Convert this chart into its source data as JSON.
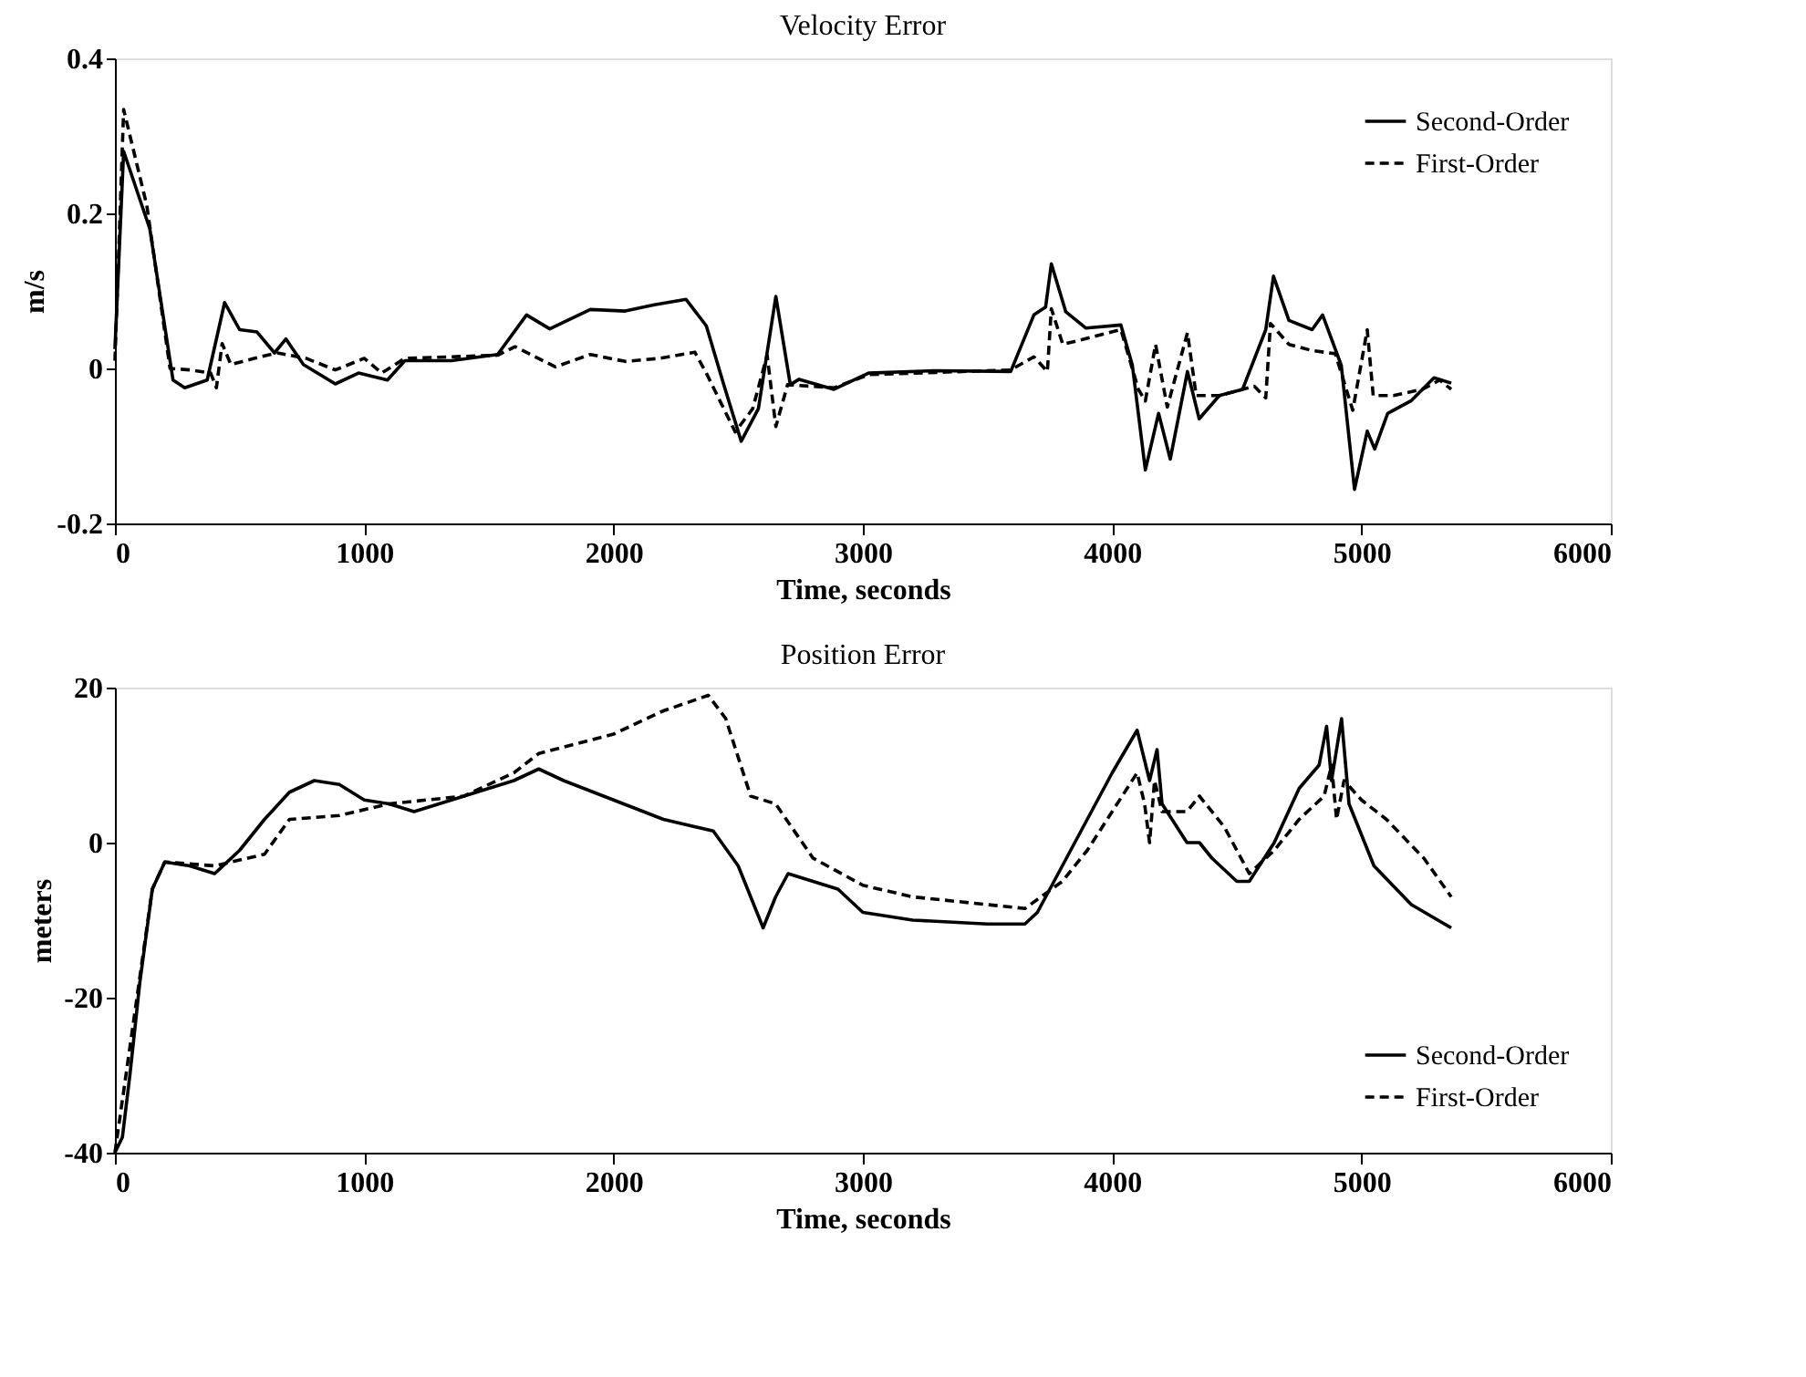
{
  "chart_data": [
    {
      "type": "line",
      "title": "Velocity Error",
      "xlabel": "Time, seconds",
      "ylabel": "m/s",
      "xlim": [
        0,
        6000
      ],
      "xticks": [
        0,
        1000,
        2000,
        3000,
        4000,
        5000,
        6000
      ],
      "ylim": [
        -0.2,
        0.4
      ],
      "yticks": [
        -0.2,
        0,
        0.2,
        0.4
      ],
      "grid": false,
      "legend": "top right",
      "marker": "none",
      "series": [
        {
          "name": "Second-Order",
          "color": "#000000",
          "line_style": "solid",
          "x": [
            0,
            35,
            140,
            233,
            280,
            370,
            440,
            500,
            570,
            640,
            686,
            756,
            884,
            977,
            1093,
            1163,
            1349,
            1535,
            1651,
            1744,
            1907,
            2047,
            2163,
            2291,
            2372,
            2442,
            2512,
            2581,
            2651,
            2709,
            2744,
            2884,
            3023,
            3291,
            3593,
            3686,
            3733,
            3756,
            3814,
            3895,
            4035,
            4081,
            4133,
            4186,
            4233,
            4302,
            4349,
            4430,
            4523,
            4616,
            4647,
            4709,
            4802,
            4844,
            4919,
            4972,
            5023,
            5053,
            5105,
            5198,
            5291,
            5360
          ],
          "values": [
            0.025,
            0.28,
            0.18,
            -0.015,
            -0.025,
            -0.015,
            0.085,
            0.05,
            0.047,
            0.02,
            0.038,
            0.005,
            -0.02,
            -0.006,
            -0.015,
            0.01,
            0.01,
            0.018,
            0.069,
            0.051,
            0.076,
            0.074,
            0.082,
            0.089,
            0.055,
            -0.021,
            -0.094,
            -0.052,
            0.093,
            -0.021,
            -0.014,
            -0.027,
            -0.006,
            -0.003,
            -0.004,
            0.069,
            0.079,
            0.135,
            0.073,
            0.052,
            0.056,
            0.004,
            -0.131,
            -0.058,
            -0.117,
            -0.004,
            -0.065,
            -0.035,
            -0.027,
            0.05,
            0.119,
            0.062,
            0.05,
            0.069,
            0.004,
            -0.156,
            -0.081,
            -0.104,
            -0.058,
            -0.042,
            -0.012,
            -0.019
          ]
        },
        {
          "name": "First-Order",
          "color": "#000000",
          "line_style": "dashed",
          "x": [
            0,
            35,
            128,
            221,
            302,
            384,
            407,
            430,
            465,
            558,
            651,
            767,
            884,
            1000,
            1070,
            1163,
            1535,
            1605,
            1767,
            1907,
            2047,
            2186,
            2326,
            2372,
            2488,
            2558,
            2616,
            2651,
            2698,
            2884,
            3023,
            3593,
            3686,
            3740,
            3756,
            3802,
            4035,
            4105,
            4133,
            4174,
            4221,
            4302,
            4337,
            4430,
            4570,
            4616,
            4635,
            4709,
            4802,
            4895,
            4965,
            5023,
            5047,
            5128,
            5244,
            5314,
            5360
          ],
          "values": [
            0.01,
            0.334,
            0.21,
            0.0,
            -0.002,
            -0.006,
            -0.025,
            0.032,
            0.005,
            0.013,
            0.02,
            0.013,
            -0.002,
            0.013,
            -0.006,
            0.013,
            0.017,
            0.028,
            0.002,
            0.018,
            0.009,
            0.013,
            0.021,
            -0.006,
            -0.082,
            -0.052,
            0.017,
            -0.075,
            -0.021,
            -0.025,
            -0.008,
            -0.002,
            0.015,
            -0.004,
            0.077,
            0.031,
            0.05,
            -0.027,
            -0.042,
            0.031,
            -0.05,
            0.046,
            -0.035,
            -0.035,
            -0.023,
            -0.038,
            0.058,
            0.031,
            0.023,
            0.019,
            -0.054,
            0.05,
            -0.035,
            -0.035,
            -0.027,
            -0.015,
            -0.027
          ]
        }
      ]
    },
    {
      "type": "line",
      "title": "Position Error",
      "xlabel": "Time, seconds",
      "ylabel": "meters",
      "xlim": [
        0,
        6000
      ],
      "xticks": [
        0,
        1000,
        2000,
        3000,
        4000,
        5000,
        6000
      ],
      "ylim": [
        -40,
        20
      ],
      "yticks": [
        -40,
        -20,
        0,
        20
      ],
      "grid": false,
      "legend": "bottom right",
      "marker": "none",
      "series": [
        {
          "name": "Second-Order",
          "color": "#000000",
          "line_style": "solid",
          "x": [
            0,
            30,
            60,
            100,
            150,
            200,
            300,
            400,
            500,
            600,
            700,
            800,
            900,
            1000,
            1100,
            1200,
            1400,
            1600,
            1700,
            1800,
            2000,
            2200,
            2400,
            2500,
            2600,
            2650,
            2700,
            2900,
            3000,
            3200,
            3500,
            3650,
            3700,
            3850,
            4000,
            4100,
            4150,
            4180,
            4200,
            4300,
            4350,
            4400,
            4500,
            4550,
            4650,
            4750,
            4830,
            4860,
            4880,
            4920,
            4950,
            5050,
            5200,
            5360
          ],
          "values": [
            -40,
            -38,
            -30,
            -18,
            -6,
            -2.5,
            -3,
            -4,
            -1,
            3,
            6.5,
            8,
            7.5,
            5.5,
            5,
            4,
            6,
            8,
            9.5,
            8,
            5.5,
            3,
            1.5,
            -3,
            -11,
            -7,
            -4,
            -6,
            -9,
            -10,
            -10.5,
            -10.5,
            -9,
            0,
            9,
            14.5,
            8,
            12,
            5,
            0,
            0,
            -2,
            -5,
            -5,
            0,
            7,
            10,
            15,
            8,
            16,
            5,
            -3,
            -8,
            -11
          ]
        },
        {
          "name": "First-Order",
          "color": "#000000",
          "line_style": "dashed",
          "x": [
            0,
            150,
            200,
            400,
            600,
            700,
            900,
            1100,
            1400,
            1600,
            1700,
            2000,
            2200,
            2380,
            2450,
            2550,
            2650,
            2800,
            3000,
            3200,
            3500,
            3650,
            3800,
            3900,
            4000,
            4100,
            4130,
            4150,
            4170,
            4200,
            4300,
            4350,
            4450,
            4550,
            4650,
            4750,
            4850,
            4880,
            4900,
            4930,
            5000,
            5100,
            5250,
            5360
          ],
          "values": [
            -40,
            -6,
            -2.5,
            -3,
            -1.5,
            3,
            3.5,
            5,
            6,
            9,
            11.5,
            14,
            17,
            19,
            16,
            6,
            5,
            -2,
            -5.5,
            -7,
            -8,
            -8.5,
            -5,
            -1,
            4,
            9,
            5,
            0,
            8,
            4,
            4,
            6,
            2,
            -4,
            -1,
            3,
            6,
            10,
            3,
            8,
            5.5,
            3,
            -2,
            -7
          ]
        }
      ]
    }
  ]
}
